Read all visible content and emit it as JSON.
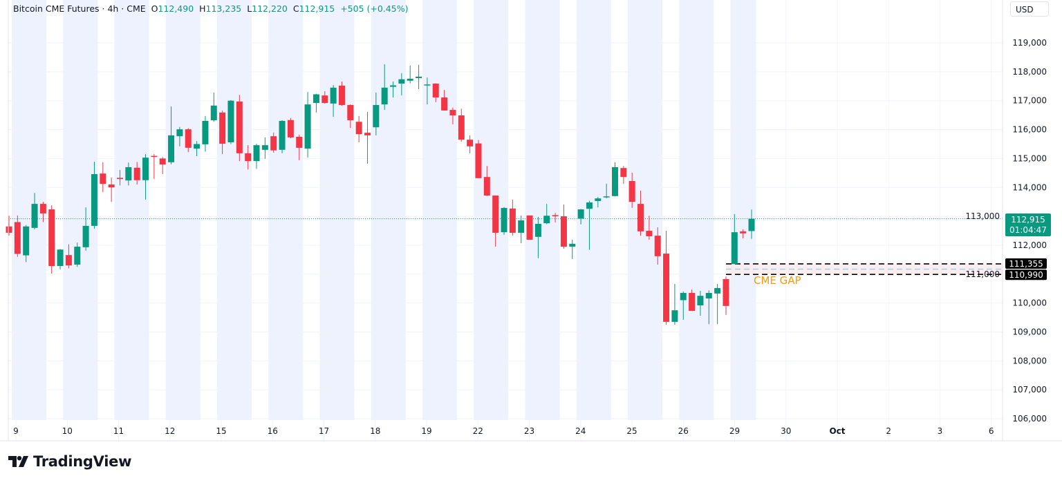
{
  "header": {
    "symbol": "Bitcoin CME Futures · 4h · CME",
    "o_label": "O",
    "o_value": "112,490",
    "h_label": "H",
    "h_value": "113,235",
    "l_label": "L",
    "l_value": "112,220",
    "c_label": "C",
    "c_value": "112,915",
    "change": "+505 (+0.45%)"
  },
  "currency": "USD",
  "price_label": {
    "price": "112,915",
    "countdown": "01:04:47"
  },
  "gap": {
    "label": "CME GAP",
    "upper": "111,355",
    "lower": "110,990",
    "upper_value": 111355,
    "lower_value": 110990
  },
  "brand": "TradingView",
  "colors": {
    "up": "#089981",
    "down": "#F23645",
    "session_band": "#EDF2FE",
    "gap_label": "#FF9800",
    "gap_fill": "#FCE8EC"
  },
  "chart_data": {
    "type": "candlestick",
    "interval": "4h",
    "ylim": [
      106000,
      119000
    ],
    "y_ticks": [
      "106,000",
      "107,000",
      "108,000",
      "109,000",
      "110,000",
      "111,000",
      "112,000",
      "113,000",
      "114,000",
      "115,000",
      "116,000",
      "117,000",
      "118,000",
      "119,000"
    ],
    "x_ticks": [
      "9",
      "10",
      "11",
      "12",
      "15",
      "16",
      "17",
      "18",
      "19",
      "22",
      "23",
      "24",
      "25",
      "26",
      "29",
      "30",
      "Oct",
      "2",
      "3",
      "6"
    ],
    "grid": true,
    "last_price": 112915,
    "ohlc": [
      [
        112650,
        113020,
        112330,
        112430
      ],
      [
        112800,
        113030,
        111600,
        111700
      ],
      [
        111650,
        112700,
        111420,
        112650
      ],
      [
        112600,
        113810,
        112550,
        113430
      ],
      [
        113430,
        113500,
        112800,
        113100
      ],
      [
        113240,
        113380,
        111020,
        111280
      ],
      [
        111280,
        111870,
        111160,
        111850
      ],
      [
        111660,
        112030,
        111200,
        111300
      ],
      [
        111330,
        112090,
        111250,
        111950
      ],
      [
        111930,
        113310,
        111810,
        112670
      ],
      [
        112670,
        114890,
        112570,
        114460
      ],
      [
        114480,
        114870,
        113840,
        114120
      ],
      [
        114100,
        114340,
        113500,
        114000
      ],
      [
        114330,
        114600,
        114070,
        114290
      ],
      [
        114240,
        114860,
        114070,
        114700
      ],
      [
        114680,
        114880,
        114100,
        114250
      ],
      [
        114250,
        115150,
        113580,
        115030
      ],
      [
        115090,
        115150,
        114290,
        115060
      ],
      [
        115000,
        115050,
        114460,
        114790
      ],
      [
        114870,
        116800,
        114800,
        115800
      ],
      [
        115770,
        116090,
        115420,
        116010
      ],
      [
        116010,
        116050,
        115220,
        115370
      ],
      [
        115340,
        115600,
        115080,
        115500
      ],
      [
        115490,
        116470,
        115240,
        116300
      ],
      [
        116320,
        117280,
        116270,
        116830
      ],
      [
        116590,
        116660,
        115150,
        115510
      ],
      [
        115560,
        117020,
        115500,
        117000
      ],
      [
        116970,
        117200,
        114910,
        115180
      ],
      [
        115180,
        115460,
        114620,
        114910
      ],
      [
        114910,
        115510,
        114640,
        115460
      ],
      [
        115300,
        115730,
        114990,
        115460
      ],
      [
        115770,
        115900,
        115200,
        115280
      ],
      [
        115300,
        116330,
        115180,
        116300
      ],
      [
        116330,
        116400,
        115700,
        115730
      ],
      [
        115750,
        115820,
        114940,
        115370
      ],
      [
        115340,
        117300,
        115030,
        116870
      ],
      [
        116920,
        117240,
        116590,
        117220
      ],
      [
        117180,
        117330,
        116900,
        116920
      ],
      [
        116900,
        117540,
        116440,
        117450
      ],
      [
        117520,
        117660,
        116820,
        116850
      ],
      [
        116850,
        116870,
        116060,
        116320
      ],
      [
        116270,
        116470,
        115560,
        115840
      ],
      [
        115890,
        116610,
        114820,
        115800
      ],
      [
        116080,
        117280,
        115800,
        116850
      ],
      [
        116870,
        118260,
        116680,
        117450
      ],
      [
        117480,
        117660,
        117110,
        117530
      ],
      [
        117590,
        117950,
        117180,
        117740
      ],
      [
        117690,
        118210,
        117600,
        117760
      ],
      [
        117780,
        118240,
        117400,
        117830
      ],
      [
        117540,
        117800,
        116870,
        117560
      ],
      [
        117590,
        117600,
        116950,
        117110
      ],
      [
        117110,
        117370,
        116660,
        116660
      ],
      [
        116680,
        116760,
        116180,
        116490
      ],
      [
        116490,
        116720,
        115580,
        115650
      ],
      [
        115650,
        115800,
        115180,
        115420
      ],
      [
        115520,
        115640,
        114320,
        114320
      ],
      [
        114360,
        114740,
        113700,
        113720
      ],
      [
        113720,
        113720,
        111950,
        112430
      ],
      [
        112450,
        113320,
        112360,
        113290
      ],
      [
        113270,
        113580,
        112330,
        112430
      ],
      [
        112430,
        113030,
        112070,
        112860
      ],
      [
        113030,
        113030,
        112190,
        112190
      ],
      [
        112290,
        112980,
        111550,
        112740
      ],
      [
        112760,
        113430,
        112730,
        113020
      ],
      [
        113040,
        113120,
        112790,
        113000
      ],
      [
        113000,
        113410,
        111880,
        111950
      ],
      [
        111950,
        112190,
        111520,
        112050
      ],
      [
        112920,
        113250,
        112720,
        113240
      ],
      [
        113260,
        113540,
        111840,
        113480
      ],
      [
        113530,
        113670,
        113310,
        113620
      ],
      [
        113660,
        114130,
        113620,
        113690
      ],
      [
        113700,
        114870,
        113690,
        114700
      ],
      [
        114670,
        114740,
        114120,
        114360
      ],
      [
        114220,
        114510,
        113290,
        113500
      ],
      [
        113430,
        113890,
        112330,
        112480
      ],
      [
        112500,
        113020,
        112190,
        112310
      ],
      [
        112330,
        112620,
        111330,
        111620
      ],
      [
        111710,
        112500,
        109250,
        109350
      ],
      [
        109350,
        110660,
        109250,
        109750
      ],
      [
        110100,
        110400,
        109420,
        110350
      ],
      [
        110350,
        110470,
        109730,
        109730
      ],
      [
        109920,
        110420,
        109560,
        110250
      ],
      [
        110160,
        110440,
        109270,
        110350
      ],
      [
        110330,
        110660,
        109270,
        110520
      ],
      [
        110830,
        110920,
        109590,
        109900
      ],
      [
        111350,
        113080,
        111350,
        112450
      ],
      [
        112480,
        112550,
        112240,
        112410
      ],
      [
        112490,
        113235,
        112220,
        112915
      ]
    ]
  }
}
